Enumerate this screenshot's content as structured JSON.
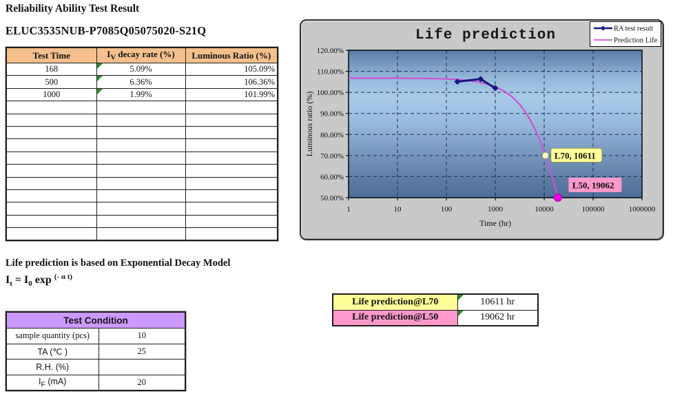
{
  "document": {
    "title": "Reliability Ability Test Result",
    "part_number": "ELUC3535NUB-P7085Q05075020-S21Q"
  },
  "result_table": {
    "columns": {
      "time": "Test Time",
      "decay": "I_{V} decay rate (%)",
      "ratio": "Luminous Ratio (%)"
    },
    "rows": [
      {
        "time": "168",
        "decay": "5.09%",
        "ratio": "105.09%"
      },
      {
        "time": "500",
        "decay": "6.36%",
        "ratio": "106.36%"
      },
      {
        "time": "1000",
        "decay": "1.99%",
        "ratio": "101.99%"
      }
    ],
    "empty_row_count": 11
  },
  "model": {
    "caption": "Life prediction is based on Exponential Decay Model",
    "formula": "I_{t} = I_{0} exp ^{(- α t)}"
  },
  "condition_table": {
    "title": "Test Condition",
    "rows": [
      {
        "label": "sample quantity (pcs)",
        "value": "10"
      },
      {
        "label": "TA (℃ )",
        "value": "25"
      },
      {
        "label": "R.H. (%)",
        "value": ""
      },
      {
        "label": "I_{F} (mA)",
        "value": "20"
      }
    ]
  },
  "prediction_summary": {
    "rows": [
      {
        "label": "Life prediction@L70",
        "value": "10611 hr",
        "bg": "#FFFF99"
      },
      {
        "label": "Life prediction@L50",
        "value": "19062 hr",
        "bg": "#FF99CC"
      }
    ]
  },
  "colors": {
    "result_header_bg": "#F5C08D",
    "condition_header_bg": "#CC99FF",
    "flag_green": "#2E8B2E",
    "chart_bg": "#C9C9C9"
  },
  "chart_data": {
    "type": "line",
    "title": "Life prediction",
    "xlabel": "Time (hr)",
    "ylabel": "Luminous ratio (%)",
    "x_scale": "log",
    "xlim": [
      1,
      1000000
    ],
    "ylim": [
      50,
      120
    ],
    "x_ticks": [
      1,
      10,
      100,
      1000,
      10000,
      100000,
      1000000
    ],
    "y_ticks": [
      120,
      110,
      100,
      90,
      80,
      70,
      60,
      50
    ],
    "grid": "dashed",
    "legend": {
      "position": "top-right",
      "entries": [
        "RA test result",
        "Prediction Life"
      ]
    },
    "series": [
      {
        "name": "RA test result",
        "type": "scatter-line",
        "color": "#16167F",
        "marker": "diamond",
        "points": [
          [
            168,
            105.09
          ],
          [
            500,
            106.36
          ],
          [
            1000,
            101.99
          ]
        ]
      },
      {
        "name": "Prediction Life",
        "type": "model-curve",
        "color": "#CD52D6",
        "model": "ratio_pct = I0_pct * exp(-alpha_per_hr * t)",
        "I0_pct": 106.8,
        "alpha_per_hr": 3.981e-05,
        "t_start": 1,
        "t_end": 19062
      }
    ],
    "annotations": [
      {
        "text": "L70, 10611",
        "t_hr": 10611,
        "ratio_pct": 70,
        "bg": "#FFFF99",
        "dot_color": "#FFFFD0"
      },
      {
        "text": "L50, 19062",
        "t_hr": 19062,
        "ratio_pct": 50,
        "bg": "#FF99CC",
        "dot_color": "#EE00EE"
      }
    ]
  }
}
